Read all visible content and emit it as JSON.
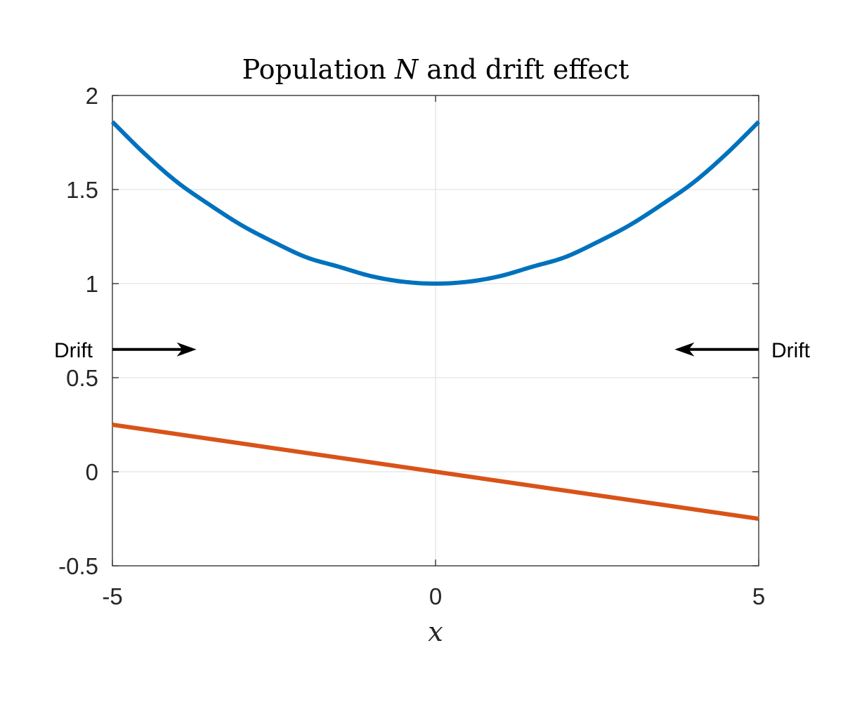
{
  "chart_data": {
    "type": "line",
    "title": {
      "prefix": "Population ",
      "variable": "N",
      "suffix": " and drift effect"
    },
    "xlabel": "x",
    "ylabel": "",
    "xlim": [
      -5,
      5
    ],
    "ylim": [
      -0.5,
      2
    ],
    "x_ticks": [
      -5,
      0,
      5
    ],
    "x_tick_labels": [
      "-5",
      "0",
      "5"
    ],
    "y_ticks": [
      -0.5,
      0,
      0.5,
      1,
      1.5,
      2
    ],
    "y_tick_labels": [
      "-0.5",
      "0",
      "0.5",
      "1",
      "1.5",
      "2"
    ],
    "grid": true,
    "series": [
      {
        "color": "#0072BD",
        "x": [
          -5,
          -4.5,
          -4,
          -3.5,
          -3,
          -2.5,
          -2,
          -1.5,
          -1,
          -0.5,
          0,
          0.5,
          1,
          1.5,
          2,
          2.5,
          3,
          3.5,
          4,
          4.5,
          5
        ],
        "y": [
          1.86,
          1.69,
          1.54,
          1.42,
          1.31,
          1.22,
          1.14,
          1.09,
          1.04,
          1.01,
          1.0,
          1.01,
          1.04,
          1.09,
          1.14,
          1.22,
          1.31,
          1.42,
          1.54,
          1.69,
          1.86
        ]
      },
      {
        "color": "#D95319",
        "x": [
          -5,
          5
        ],
        "y": [
          0.25,
          -0.25
        ]
      }
    ],
    "annotations": [
      {
        "text": "Drift",
        "x_start": -5,
        "x_end": -3.7,
        "y": 0.65,
        "direction": "right"
      },
      {
        "text": "Drift",
        "x_start": 5,
        "x_end": 3.7,
        "y": 0.65,
        "direction": "left"
      }
    ]
  }
}
